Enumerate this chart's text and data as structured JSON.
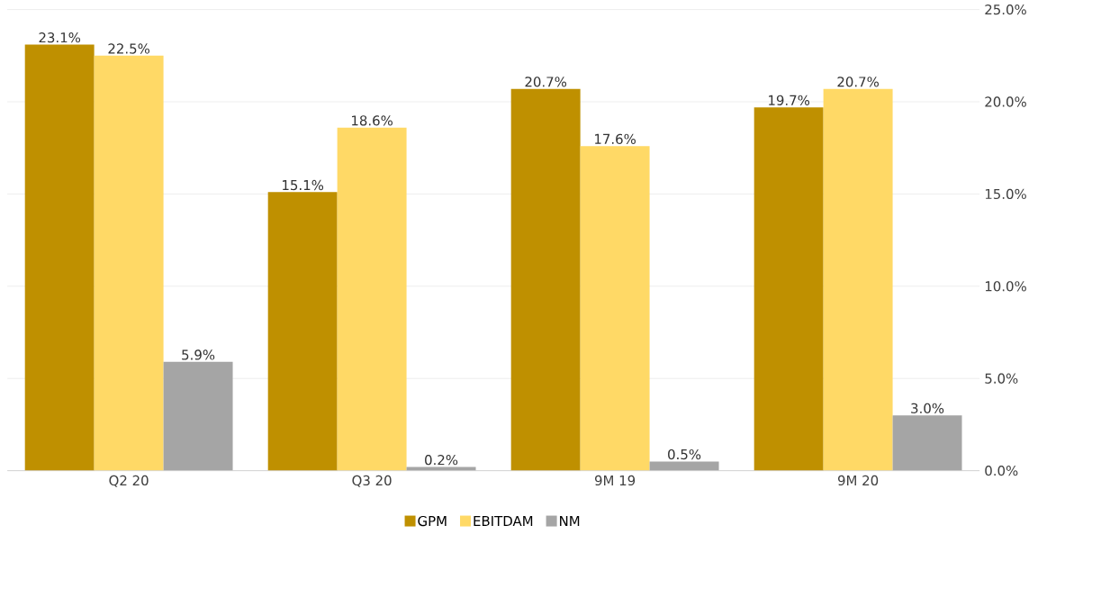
{
  "chart_data": {
    "type": "bar",
    "categories": [
      "Q2 20",
      "Q3 20",
      "9M 19",
      "9M 20"
    ],
    "series": [
      {
        "name": "GPM",
        "color": "#bf9000",
        "values": [
          23.1,
          15.1,
          20.7,
          19.7
        ],
        "value_labels": [
          "23.1%",
          "15.1%",
          "20.7%",
          "19.7%"
        ]
      },
      {
        "name": "EBITDAM",
        "color": "#ffd966",
        "values": [
          22.5,
          18.6,
          17.6,
          20.7
        ],
        "value_labels": [
          "22.5%",
          "18.6%",
          "17.6%",
          "20.7%"
        ]
      },
      {
        "name": "NM",
        "color": "#a5a5a5",
        "values": [
          5.9,
          0.2,
          0.5,
          3.0
        ],
        "value_labels": [
          "5.9%",
          "0.2%",
          "0.5%",
          "3.0%"
        ]
      }
    ],
    "ylim": [
      0,
      25
    ],
    "yticks": [
      {
        "value": 0,
        "label": "0.0%"
      },
      {
        "value": 5,
        "label": "5.0%"
      },
      {
        "value": 10,
        "label": "10.0%"
      },
      {
        "value": 15,
        "label": "15.0%"
      },
      {
        "value": 20,
        "label": "20.0%"
      },
      {
        "value": 25,
        "label": "25.0%"
      }
    ],
    "grid": "y",
    "legend": "bottom"
  }
}
